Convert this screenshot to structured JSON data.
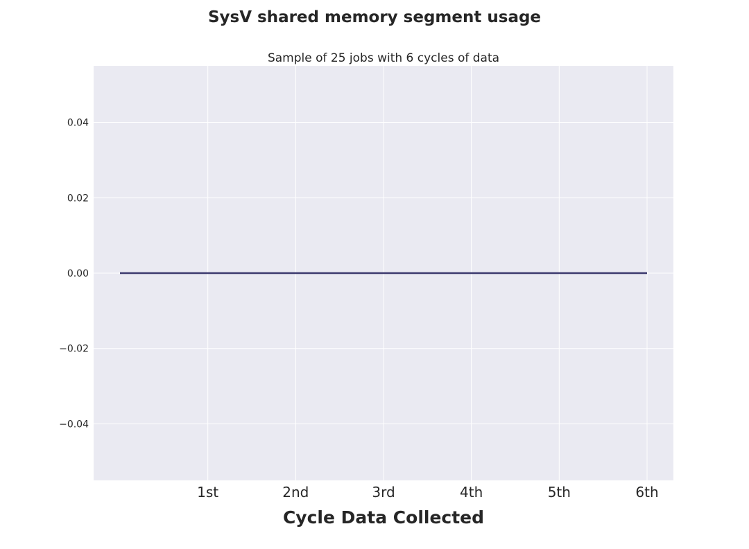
{
  "title": "SysV shared memory segment usage",
  "chart_data": {
    "type": "line",
    "title": "SysV shared memory segment usage",
    "subtitle": "Sample of 25 jobs with 6 cycles of data",
    "xlabel": "Cycle Data Collected",
    "ylabel": "",
    "categories": [
      "1st",
      "2nd",
      "3rd",
      "4th",
      "5th",
      "6th"
    ],
    "x": [
      0,
      1,
      2,
      3,
      4,
      5,
      6
    ],
    "xlim": [
      -0.3,
      6.3
    ],
    "xticks": [
      1,
      2,
      3,
      4,
      5,
      6
    ],
    "ylim": [
      -0.055,
      0.055
    ],
    "yticks": [
      -0.04,
      -0.02,
      0.0,
      0.02,
      0.04
    ],
    "ytick_labels": [
      "−0.04",
      "−0.02",
      "0.00",
      "0.02",
      "0.04"
    ],
    "series": [
      {
        "values": [
          0,
          0,
          0,
          0,
          0,
          0,
          0
        ],
        "color": "#3c3a6e"
      }
    ],
    "grid": true,
    "style": {
      "background": "#eaeaf2",
      "grid_color": "#ffffff",
      "line_color": "#3c3a6e"
    }
  }
}
